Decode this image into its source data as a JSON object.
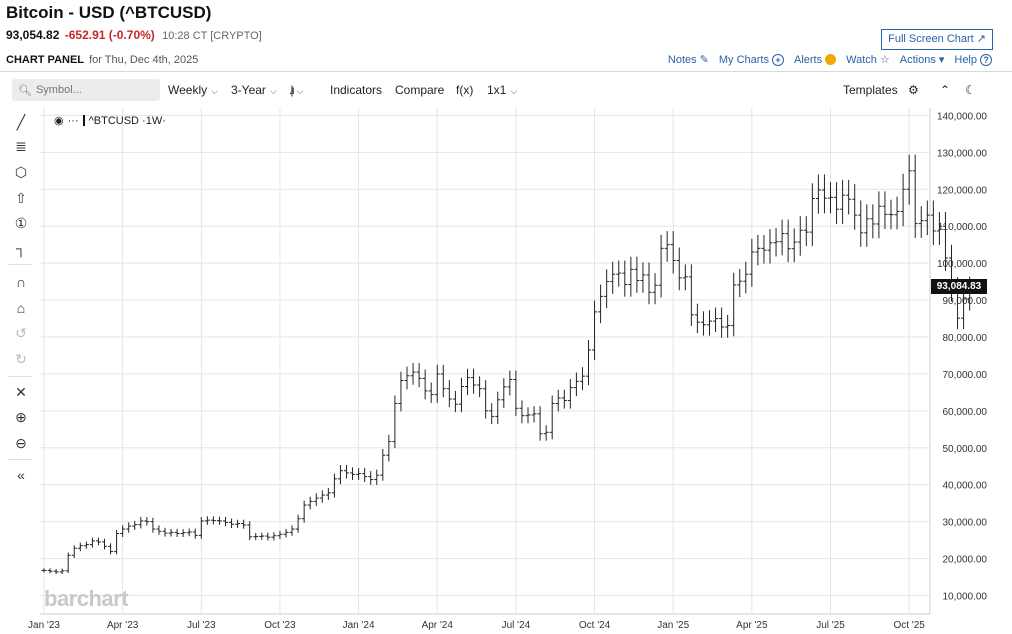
{
  "header": {
    "title": "Bitcoin - USD (^BTCUSD)",
    "last": "93,054.82",
    "change": "-652.91 (-0.70%)",
    "time": "10:28 CT [CRYPTO]",
    "fullscreen_label": "Full Screen Chart",
    "panel_title": "CHART PANEL",
    "panel_date": "for Thu, Dec 4th, 2025"
  },
  "panel_links": {
    "notes": "Notes",
    "my_charts": "My Charts",
    "alerts": "Alerts",
    "watch": "Watch",
    "actions": "Actions",
    "help": "Help"
  },
  "toolbar": {
    "symbol_placeholder": "Symbol...",
    "interval": "Weekly",
    "range": "3-Year",
    "indicators": "Indicators",
    "compare": "Compare",
    "fx": "f(x)",
    "layout": "1x1",
    "templates": "Templates"
  },
  "series_label": "^BTCUSD ·1W·",
  "last_price_badge": "93,084.83",
  "watermark": "barchart",
  "colors": {
    "accent": "#2962a8",
    "negative": "#c62828",
    "bars": "#222222",
    "grid": "#e5e5e5"
  },
  "chart_data": {
    "type": "ohlc",
    "interval": "weekly",
    "ylim": [
      5000,
      142000
    ],
    "y_ticks": [
      10000,
      20000,
      30000,
      40000,
      50000,
      60000,
      70000,
      80000,
      90000,
      100000,
      110000,
      120000,
      130000,
      140000
    ],
    "y_tick_labels": [
      "10,000.00",
      "20,000.00",
      "30,000.00",
      "40,000.00",
      "50,000.00",
      "60,000.00",
      "70,000.00",
      "80,000.00",
      "90,000.00",
      "100,000.00",
      "110,000.00",
      "120,000.00",
      "130,000.00",
      "140,000.00"
    ],
    "x_ticks": [
      0,
      13,
      26,
      39,
      52,
      65,
      78,
      91,
      104,
      117,
      130,
      143
    ],
    "x_tick_labels": [
      "Jan '23",
      "Apr '23",
      "Jul '23",
      "Oct '23",
      "Jan '24",
      "Apr '24",
      "Jul '24",
      "Oct '24",
      "Jan '25",
      "Apr '25",
      "Jul '25",
      "Oct '25"
    ],
    "closes": [
      16800,
      16600,
      16400,
      16700,
      20900,
      22800,
      23500,
      23800,
      24800,
      24500,
      23300,
      21900,
      26800,
      28000,
      28800,
      29200,
      30200,
      30000,
      28000,
      27400,
      26900,
      27100,
      26800,
      27000,
      27200,
      26300,
      30200,
      30400,
      30300,
      30200,
      29800,
      29300,
      29500,
      29100,
      25900,
      26000,
      26100,
      25800,
      26200,
      26600,
      27100,
      28000,
      30800,
      34500,
      35500,
      36400,
      37200,
      37800,
      41600,
      43800,
      43200,
      42800,
      43000,
      42200,
      41400,
      42600,
      48000,
      51700,
      62000,
      68200,
      69500,
      70500,
      68800,
      65400,
      64400,
      70000,
      66000,
      63200,
      61800,
      66600,
      69000,
      67000,
      66000,
      60000,
      58500,
      63000,
      66500,
      68500,
      60700,
      58700,
      58900,
      59200,
      53800,
      54200,
      62000,
      63500,
      62800,
      66300,
      68000,
      69400,
      76500,
      86800,
      91000,
      95000,
      97000,
      97300,
      94200,
      98300,
      95300,
      96800,
      92100,
      94000,
      104000,
      105000,
      100700,
      96000,
      96300,
      86000,
      84000,
      83300,
      84300,
      85000,
      82700,
      83100,
      94100,
      95100,
      97000,
      103000,
      104000,
      103500,
      105500,
      105800,
      108000,
      103900,
      105700,
      108900,
      108400,
      117500,
      119800,
      117600,
      117800,
      114600,
      118400,
      117300,
      113000,
      108200,
      112000,
      110600,
      115400,
      113200,
      113100,
      114000,
      120000,
      125000,
      110700,
      111500,
      113000,
      108700,
      110000,
      101400,
      92900,
      85100,
      90300,
      93100
    ]
  }
}
